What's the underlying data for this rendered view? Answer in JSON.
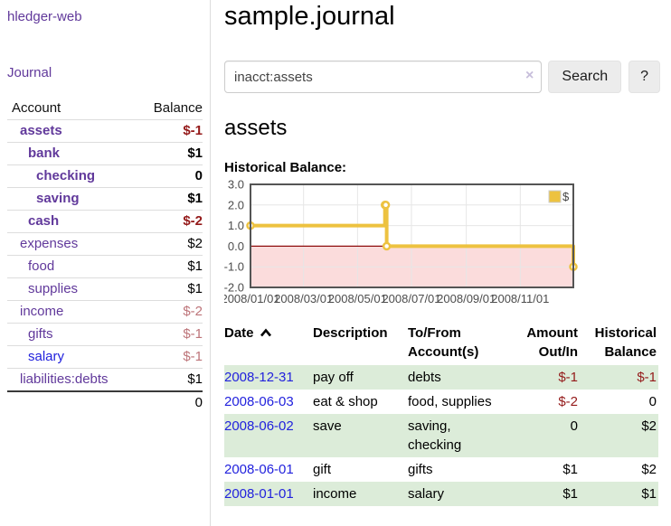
{
  "sidebar": {
    "app_title": "hledger-web",
    "journal_link": "Journal",
    "accounts_table": {
      "headers": {
        "account": "Account",
        "balance": "Balance"
      },
      "rows": [
        {
          "name": "assets",
          "balance": "$-1",
          "indent": 1,
          "bold": true,
          "link": "purple"
        },
        {
          "name": "bank",
          "balance": "$1",
          "indent": 2,
          "bold": true,
          "link": "purple"
        },
        {
          "name": "checking",
          "balance": "0",
          "indent": 3,
          "bold": true,
          "link": "purple"
        },
        {
          "name": "saving",
          "balance": "$1",
          "indent": 3,
          "bold": true,
          "link": "purple"
        },
        {
          "name": "cash",
          "balance": "$-2",
          "indent": 2,
          "bold": true,
          "link": "purple"
        },
        {
          "name": "expenses",
          "balance": "$2",
          "indent": 1,
          "bold": false,
          "link": "purple"
        },
        {
          "name": "food",
          "balance": "$1",
          "indent": 2,
          "bold": false,
          "link": "purple"
        },
        {
          "name": "supplies",
          "balance": "$1",
          "indent": 2,
          "bold": false,
          "link": "purple"
        },
        {
          "name": "income",
          "balance": "$-2",
          "indent": 1,
          "bold": false,
          "link": "purple"
        },
        {
          "name": "gifts",
          "balance": "$-1",
          "indent": 2,
          "bold": false,
          "link": "purple"
        },
        {
          "name": "salary",
          "balance": "$-1",
          "indent": 2,
          "bold": false,
          "link": "blue"
        },
        {
          "name": "liabilities:debts",
          "balance": "$1",
          "indent": 1,
          "bold": false,
          "link": "purple"
        }
      ],
      "total": "0"
    }
  },
  "main": {
    "title": "sample.journal",
    "search": {
      "query": "inacct:assets",
      "clear_icon": "×",
      "search_button": "Search",
      "help_button": "?"
    },
    "account_heading": "assets",
    "chart_label": "Historical Balance:"
  },
  "chart_data": {
    "type": "line",
    "style": "step",
    "title": "Historical Balance",
    "series": [
      {
        "name": "$",
        "points": [
          [
            "2008-01-01",
            1
          ],
          [
            "2008-06-01",
            2
          ],
          [
            "2008-06-02",
            2
          ],
          [
            "2008-06-03",
            0
          ],
          [
            "2008-12-31",
            -1
          ]
        ]
      }
    ],
    "x_range": [
      "2008-01-01",
      "2008-12-31"
    ],
    "y_range": [
      -2,
      3
    ],
    "x_ticks": [
      "2008/01/01",
      "2008/03/01",
      "2008/05/01",
      "2008/07/01",
      "2008/09/01",
      "2008/11/01"
    ],
    "y_ticks": [
      3.0,
      2.0,
      1.0,
      0.0,
      -1.0,
      -2.0
    ],
    "legend": {
      "label": "$",
      "position": "top-right"
    },
    "grid": true,
    "colors": {
      "line": "#edc240",
      "marker_fill": "#ffffff",
      "negative_region": "#fbdcdc",
      "zero_line": "#8f0e0e",
      "grid": "#e6e6e6",
      "border": "#545454"
    }
  },
  "register": {
    "columns": [
      {
        "label": "Date",
        "sorted": "asc",
        "align": "left"
      },
      {
        "label": "Description",
        "align": "left"
      },
      {
        "label": "To/From\nAccount(s)",
        "align": "left"
      },
      {
        "label": "Amount\nOut/In",
        "align": "right"
      },
      {
        "label": "Historical\nBalance",
        "align": "right"
      }
    ],
    "rows": [
      {
        "date": "2008-12-31",
        "description": "pay off",
        "accounts": "debts",
        "amount": "$-1",
        "balance": "$-1"
      },
      {
        "date": "2008-06-03",
        "description": "eat & shop",
        "accounts": "food, supplies",
        "amount": "$-2",
        "balance": "0"
      },
      {
        "date": "2008-06-02",
        "description": "save",
        "accounts": "saving, checking",
        "amount": "0",
        "balance": "$2"
      },
      {
        "date": "2008-06-01",
        "description": "gift",
        "accounts": "gifts",
        "amount": "$1",
        "balance": "$2"
      },
      {
        "date": "2008-01-01",
        "description": "income",
        "accounts": "salary",
        "amount": "$1",
        "balance": "$1"
      }
    ]
  }
}
